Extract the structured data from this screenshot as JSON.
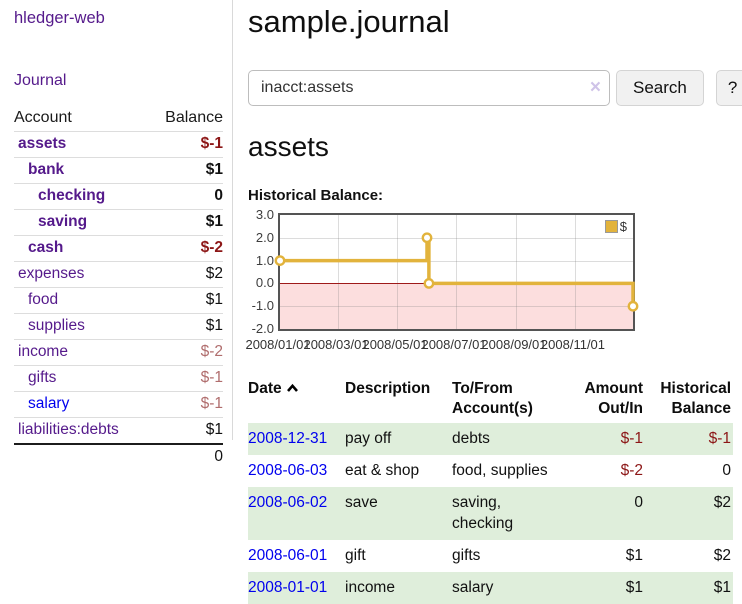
{
  "sidebar": {
    "brand": "hledger-web",
    "journal_link": "Journal",
    "accounts_table": {
      "account_header": "Account",
      "balance_header": "Balance",
      "rows": [
        {
          "name": "assets",
          "depth": 1,
          "bold": true,
          "blue": false,
          "balance": "$-1",
          "balance_style": "neg-strong"
        },
        {
          "name": "bank",
          "depth": 2,
          "bold": true,
          "blue": false,
          "balance": "$1",
          "balance_style": "pos"
        },
        {
          "name": "checking",
          "depth": 3,
          "bold": true,
          "blue": false,
          "balance": "0",
          "balance_style": "pos"
        },
        {
          "name": "saving",
          "depth": 3,
          "bold": true,
          "blue": false,
          "balance": "$1",
          "balance_style": "pos"
        },
        {
          "name": "cash",
          "depth": 2,
          "bold": true,
          "blue": false,
          "balance": "$-2",
          "balance_style": "neg-strong"
        },
        {
          "name": "expenses",
          "depth": 1,
          "bold": false,
          "blue": false,
          "balance": "$2",
          "balance_style": "pos"
        },
        {
          "name": "food",
          "depth": 2,
          "bold": false,
          "blue": false,
          "balance": "$1",
          "balance_style": "pos"
        },
        {
          "name": "supplies",
          "depth": 2,
          "bold": false,
          "blue": false,
          "balance": "$1",
          "balance_style": "pos"
        },
        {
          "name": "income",
          "depth": 1,
          "bold": false,
          "blue": false,
          "balance": "$-2",
          "balance_style": "neg-muted"
        },
        {
          "name": "gifts",
          "depth": 2,
          "bold": false,
          "blue": false,
          "balance": "$-1",
          "balance_style": "neg-muted"
        },
        {
          "name": "salary",
          "depth": 2,
          "bold": false,
          "blue": true,
          "balance": "$-1",
          "balance_style": "neg-muted"
        },
        {
          "name": "liabilities:debts",
          "depth": 1,
          "bold": false,
          "blue": false,
          "balance": "$1",
          "balance_style": "pos"
        }
      ],
      "total": "0"
    }
  },
  "main": {
    "title": "sample.journal",
    "search": {
      "value": "inacct:assets",
      "clear_icon": "×",
      "search_button": "Search",
      "help_button": "?"
    },
    "account_heading": "assets",
    "chart_heading": "Historical Balance:"
  },
  "chart_data": {
    "type": "line",
    "step": true,
    "title": "Historical Balance:",
    "series": [
      {
        "name": "$",
        "color": "#e2b33c",
        "points": [
          [
            "2008-01-01",
            1.0
          ],
          [
            "2008-06-01",
            2.0
          ],
          [
            "2008-06-03",
            0.0
          ],
          [
            "2008-12-31",
            -1.0
          ]
        ]
      }
    ],
    "xdomain": [
      "2008-01-01",
      "2008-12-31"
    ],
    "xticks": [
      {
        "date": "2008-01-01",
        "label": "2008/01/01"
      },
      {
        "date": "2008-03-01",
        "label": "2008/03/01"
      },
      {
        "date": "2008-05-01",
        "label": "2008/05/01"
      },
      {
        "date": "2008-07-01",
        "label": "2008/07/01"
      },
      {
        "date": "2008-09-01",
        "label": "2008/09/01"
      },
      {
        "date": "2008-11-01",
        "label": "2008/11/01"
      }
    ],
    "ylim": [
      -2,
      3
    ],
    "yticks": [
      3.0,
      2.0,
      1.0,
      0.0,
      -1.0,
      -2.0
    ],
    "ytick_labels": [
      "3.0",
      "2.0",
      "1.0",
      "0.0",
      "-1.0",
      "-2.0"
    ],
    "grid": true,
    "negative_region_fill": "#fcdede",
    "zero_line_color": "#9e1a1a",
    "legend": {
      "label": "$",
      "position": "top-right"
    }
  },
  "register": {
    "headers": {
      "date": "Date",
      "description": "Description",
      "accounts": "To/From Account(s)",
      "amount": "Amount Out/In",
      "balance": "Historical Balance"
    },
    "sort_icon": "chevron-up",
    "rows": [
      {
        "date": "2008-12-31",
        "description": "pay off",
        "accounts": "debts",
        "amount": "$-1",
        "amount_neg": true,
        "balance": "$-1",
        "balance_neg": true
      },
      {
        "date": "2008-06-03",
        "description": "eat & shop",
        "accounts": "food, supplies",
        "amount": "$-2",
        "amount_neg": true,
        "balance": "0",
        "balance_neg": false
      },
      {
        "date": "2008-06-02",
        "description": "save",
        "accounts": "saving, checking",
        "amount": "0",
        "amount_neg": false,
        "balance": "$2",
        "balance_neg": false
      },
      {
        "date": "2008-06-01",
        "description": "gift",
        "accounts": "gifts",
        "amount": "$1",
        "amount_neg": false,
        "balance": "$2",
        "balance_neg": false
      },
      {
        "date": "2008-01-01",
        "description": "income",
        "accounts": "salary",
        "amount": "$1",
        "amount_neg": false,
        "balance": "$1",
        "balance_neg": false
      }
    ]
  },
  "colors": {
    "link_purple": "#551a8b",
    "link_blue": "#0000ee",
    "negative_strong": "#8c1616",
    "negative_muted": "#b06d6d",
    "row_green": "#dfeedb",
    "chart_line_gold": "#e2b33c",
    "chart_negative_pink": "#fcdede",
    "chart_zero_line": "#9e1a1a"
  }
}
